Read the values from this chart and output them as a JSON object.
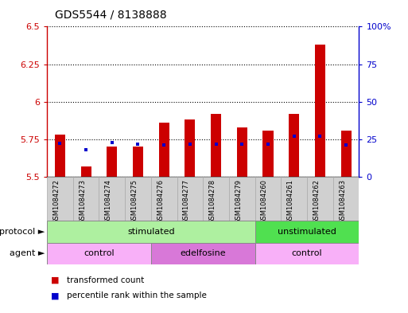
{
  "title": "GDS5544 / 8138888",
  "samples": [
    "GSM1084272",
    "GSM1084273",
    "GSM1084274",
    "GSM1084275",
    "GSM1084276",
    "GSM1084277",
    "GSM1084278",
    "GSM1084279",
    "GSM1084260",
    "GSM1084261",
    "GSM1084262",
    "GSM1084263"
  ],
  "red_values": [
    5.78,
    5.57,
    5.7,
    5.7,
    5.86,
    5.88,
    5.92,
    5.83,
    5.81,
    5.92,
    6.38,
    5.81
  ],
  "blue_values": [
    5.725,
    5.68,
    5.73,
    5.72,
    5.71,
    5.72,
    5.72,
    5.715,
    5.72,
    5.77,
    5.77,
    5.71
  ],
  "ymin": 5.5,
  "ymax": 6.5,
  "yticks_left": [
    5.5,
    5.75,
    6.0,
    6.25,
    6.5
  ],
  "yticks_right": [
    0,
    25,
    50,
    75,
    100
  ],
  "protocol_groups": [
    {
      "label": "stimulated",
      "start": 0,
      "end": 7,
      "color": "#aef0a0"
    },
    {
      "label": "unstimulated",
      "start": 8,
      "end": 11,
      "color": "#50e050"
    }
  ],
  "agent_groups": [
    {
      "label": "control",
      "start": 0,
      "end": 3,
      "color": "#f8b0f8"
    },
    {
      "label": "edelfosine",
      "start": 4,
      "end": 7,
      "color": "#d878d8"
    },
    {
      "label": "control",
      "start": 8,
      "end": 11,
      "color": "#f8b0f8"
    }
  ],
  "bar_color": "#cc0000",
  "blue_marker_color": "#0000cc",
  "bg_color": "#ffffff",
  "label_bg_color": "#d0d0d0",
  "label_edge_color": "#aaaaaa",
  "left_axis_color": "#cc0000",
  "right_axis_color": "#0000cc"
}
